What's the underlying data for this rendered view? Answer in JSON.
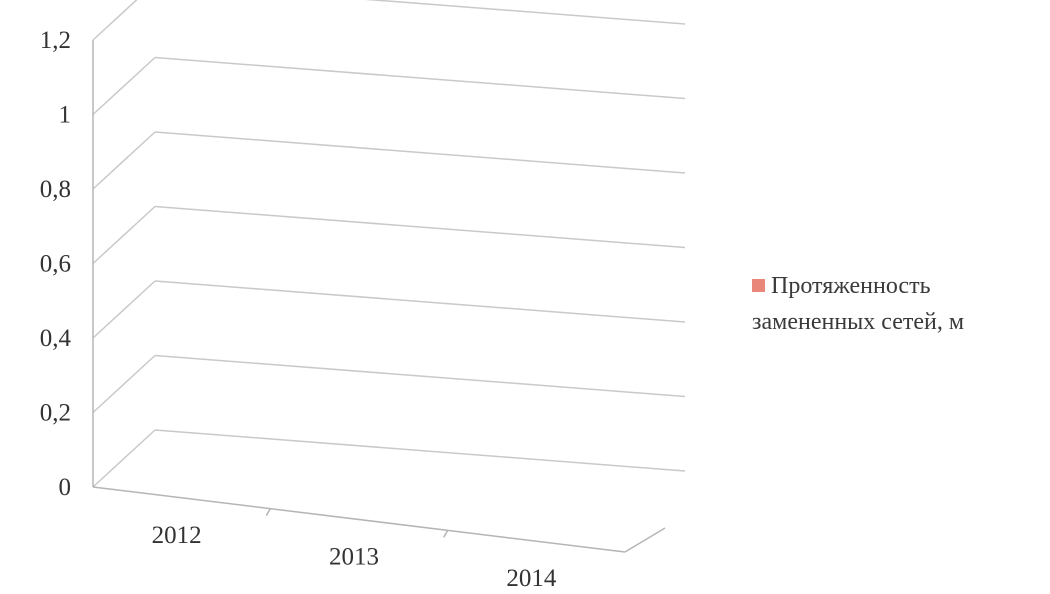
{
  "chart_data": {
    "type": "bar",
    "view": "3d",
    "categories": [
      "2012",
      "2013",
      "2014"
    ],
    "series": [
      {
        "name": "Протяженность замененных сетей, м",
        "values": [
          0,
          0,
          0
        ],
        "color": "#e8877a"
      }
    ],
    "yticks": [
      "0",
      "0,2",
      "0,4",
      "0,6",
      "0,8",
      "1",
      "1,2"
    ],
    "ylim": [
      0,
      1.2
    ],
    "grid": true,
    "legend_position": "right"
  },
  "colors": {
    "gridline": "#c9c9c9",
    "axis": "#b5b5b5",
    "text": "#333333"
  }
}
